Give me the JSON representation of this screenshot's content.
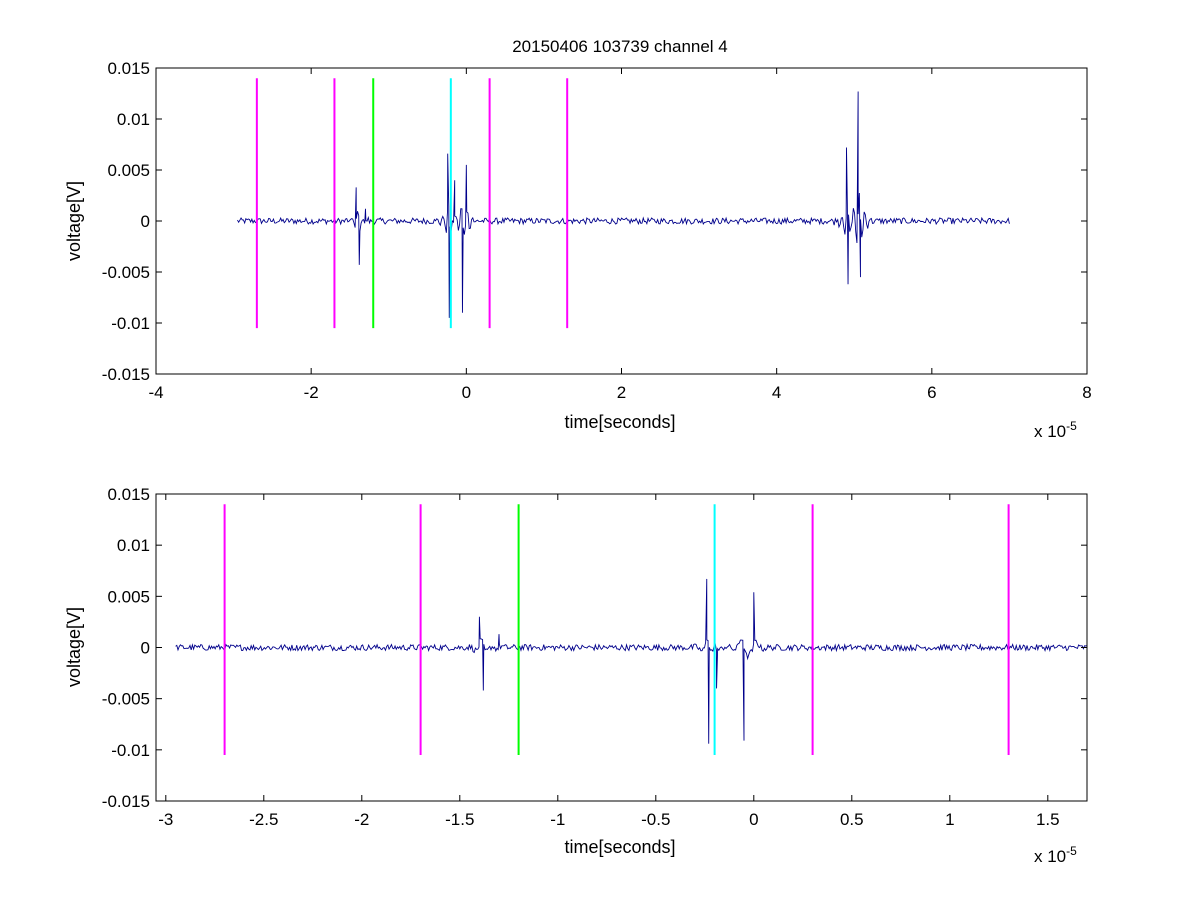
{
  "figure": {
    "title": "20150406 103739 channel 4"
  },
  "chart_data": [
    {
      "type": "line",
      "title": "20150406 103739 channel 4",
      "xlabel": "time[seconds]",
      "ylabel": "voltage[V]",
      "x_exponent_label": "x 10",
      "x_exponent": "-5",
      "xlim": [
        -4,
        8
      ],
      "ylim": [
        -0.015,
        0.015
      ],
      "x_ticks": [
        -4,
        -2,
        0,
        2,
        4,
        6,
        8
      ],
      "x_tick_labels": [
        "-4",
        "-2",
        "0",
        "2",
        "4",
        "6",
        "8"
      ],
      "y_ticks": [
        -0.015,
        -0.01,
        -0.005,
        0,
        0.005,
        0.01,
        0.015
      ],
      "y_tick_labels": [
        "-0.015",
        "-0.01",
        "-0.005",
        "0",
        "0.005",
        "0.01",
        "0.015"
      ],
      "grid": false,
      "signal": {
        "color": "#00008b",
        "x_range": [
          -2.95,
          7.0
        ],
        "noise_amplitude": 0.0003,
        "features": [
          {
            "x": -1.42,
            "y": 0.0033
          },
          {
            "x": -1.38,
            "y": -0.0043
          },
          {
            "x": -1.3,
            "y": 0.0012
          },
          {
            "x": -0.24,
            "y": 0.0066
          },
          {
            "x": -0.22,
            "y": -0.0095
          },
          {
            "x": -0.15,
            "y": 0.004
          },
          {
            "x": -0.05,
            "y": -0.009
          },
          {
            "x": 0.0,
            "y": 0.0055
          },
          {
            "x": 4.9,
            "y": 0.0072
          },
          {
            "x": 4.92,
            "y": -0.0062
          },
          {
            "x": 5.05,
            "y": 0.0127
          },
          {
            "x": 5.08,
            "y": -0.0055
          }
        ]
      },
      "markers": [
        {
          "x": -2.7,
          "color": "#ff00ff"
        },
        {
          "x": -1.7,
          "color": "#ff00ff"
        },
        {
          "x": -1.2,
          "color": "#00ff00"
        },
        {
          "x": -0.2,
          "color": "#00ffff"
        },
        {
          "x": 0.3,
          "color": "#ff00ff"
        },
        {
          "x": 1.3,
          "color": "#ff00ff"
        }
      ],
      "marker_y_range": [
        -0.0105,
        0.014
      ]
    },
    {
      "type": "line",
      "title": "",
      "xlabel": "time[seconds]",
      "ylabel": "voltage[V]",
      "x_exponent_label": "x 10",
      "x_exponent": "-5",
      "xlim": [
        -3.05,
        1.7
      ],
      "ylim": [
        -0.015,
        0.015
      ],
      "x_ticks": [
        -3,
        -2.5,
        -2,
        -1.5,
        -1,
        -0.5,
        0,
        0.5,
        1,
        1.5
      ],
      "x_tick_labels": [
        "-3",
        "-2.5",
        "-2",
        "-1.5",
        "-1",
        "-0.5",
        "0",
        "0.5",
        "1",
        "1.5"
      ],
      "y_ticks": [
        -0.015,
        -0.01,
        -0.005,
        0,
        0.005,
        0.01,
        0.015
      ],
      "y_tick_labels": [
        "-0.015",
        "-0.01",
        "-0.005",
        "0",
        "0.005",
        "0.01",
        "0.015"
      ],
      "grid": false,
      "signal": {
        "color": "#00008b",
        "x_range": [
          -2.95,
          1.7
        ],
        "noise_amplitude": 0.0003,
        "features": [
          {
            "x": -1.4,
            "y": 0.003
          },
          {
            "x": -1.38,
            "y": -0.0042
          },
          {
            "x": -1.3,
            "y": 0.0013
          },
          {
            "x": -0.24,
            "y": 0.0067
          },
          {
            "x": -0.23,
            "y": -0.0094
          },
          {
            "x": -0.19,
            "y": -0.004
          },
          {
            "x": -0.05,
            "y": -0.0091
          },
          {
            "x": 0.0,
            "y": 0.0054
          }
        ]
      },
      "markers": [
        {
          "x": -2.7,
          "color": "#ff00ff"
        },
        {
          "x": -1.7,
          "color": "#ff00ff"
        },
        {
          "x": -1.2,
          "color": "#00ff00"
        },
        {
          "x": -0.2,
          "color": "#00ffff"
        },
        {
          "x": 0.3,
          "color": "#ff00ff"
        },
        {
          "x": 1.3,
          "color": "#ff00ff"
        }
      ],
      "marker_y_range": [
        -0.0105,
        0.014
      ]
    }
  ]
}
